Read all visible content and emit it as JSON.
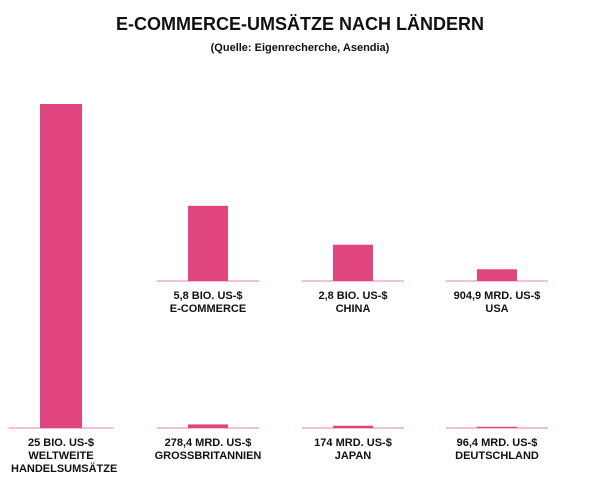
{
  "chart_data": {
    "type": "bar",
    "title": "E-COMMERCE-UMSÄTZE NACH LÄNDERN",
    "subtitle": "(Quelle: Eigenrecherche, Asendia)",
    "categories": [
      "WELTWEITE HANDELSUMSÄTZE",
      "E-COMMERCE",
      "CHINA",
      "USA",
      "GROSSBRITANNIEN",
      "JAPAN",
      "DEUTSCHLAND"
    ],
    "values": [
      25000,
      5800,
      2800,
      904.9,
      278.4,
      174,
      96.4
    ],
    "value_labels": [
      "25 BIO. US-$",
      "5,8 BIO. US-$",
      "2,8 BIO. US-$",
      "904,9 MRD. US-$",
      "278,4 MRD. US-$",
      "174 MRD. US-$",
      "96,4 MRD. US-$"
    ],
    "color": "#e0457f"
  }
}
